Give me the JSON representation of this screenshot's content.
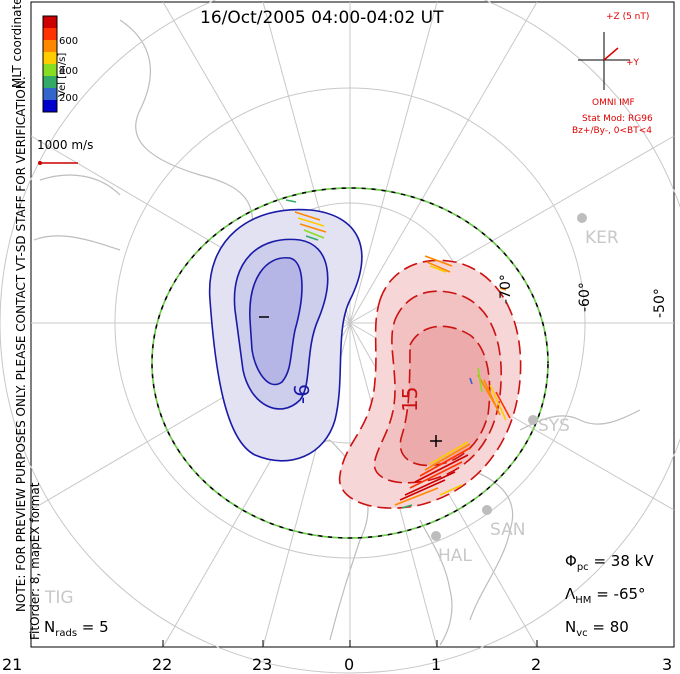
{
  "title": "16/Oct/2005 04:00-04:02 UT",
  "coordinate_label": "MLT coordinates",
  "velocity_scale": {
    "label": "Vel [m/s]",
    "ticks": [
      "600",
      "400",
      "200"
    ],
    "colors": [
      "#cc0000",
      "#ff3300",
      "#ff8800",
      "#ffcc00",
      "#88dd22",
      "#33aa66",
      "#3366cc",
      "#0000cc"
    ]
  },
  "reference_vector": "1000 m/s",
  "imf": {
    "z_label": "+Z (5 nT)",
    "y_label": "+Y",
    "source": "OMNI IMF",
    "stat_mod": "Stat Mod: RG96",
    "condition": "Bz+/By-, 0<BT<4"
  },
  "latitude_labels": [
    "-60°",
    "-50°",
    "-70°"
  ],
  "contour_labels": {
    "negative": "-6",
    "positive": "15",
    "min_mark": "–",
    "max_mark": "+"
  },
  "stations": [
    "KER",
    "SYS",
    "SAN",
    "HAL",
    "TIG"
  ],
  "mlt_labels": [
    "21",
    "22",
    "23",
    "0",
    "1",
    "2",
    "3"
  ],
  "stats": {
    "phi_pc": "38 kV",
    "lambda_hm": "-65°",
    "n_vc": "80",
    "n_rads": "5"
  },
  "side_notes": {
    "preview": "NOTE: FOR PREVIEW PURPOSES ONLY. PLEASE CONTACT VT-SD STAFF FOR VERIFICATION.",
    "fit": "FitOrder: 8, mapEX format"
  },
  "colors": {
    "negative_cell": "#1a1aa8",
    "positive_cell": "#cc1111",
    "boundary_dash": "#66cc44"
  }
}
